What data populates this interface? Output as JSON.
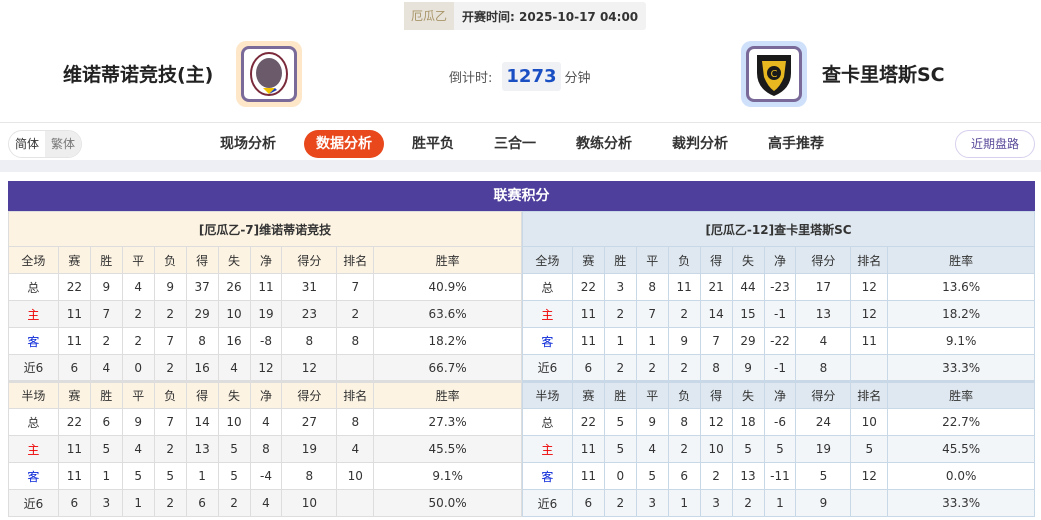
{
  "match": {
    "league": "厄瓜乙",
    "time_label": "开赛时间:",
    "time": "2025-10-17 04:00",
    "home": "维诺蒂诺竞技(主)",
    "away": "查卡里塔斯SC",
    "countdown_label": "倒计时:",
    "countdown": "1273",
    "countdown_unit": "分钟"
  },
  "nav": {
    "lang": [
      "简体",
      "繁体"
    ],
    "tabs": [
      "现场分析",
      "数据分析",
      "胜平负",
      "三合一",
      "教练分析",
      "裁判分析",
      "高手推荐"
    ],
    "active": 1,
    "recent": "近期盘路"
  },
  "standings": {
    "title": "联赛积分",
    "columns_full": [
      "全场",
      "赛",
      "胜",
      "平",
      "负",
      "得",
      "失",
      "净",
      "得分",
      "排名",
      "胜率"
    ],
    "columns_half": [
      "半场",
      "赛",
      "胜",
      "平",
      "负",
      "得",
      "失",
      "净",
      "得分",
      "排名",
      "胜率"
    ],
    "home": {
      "title": "[厄瓜乙-7]维诺蒂诺竞技",
      "full": [
        [
          "总",
          "22",
          "9",
          "4",
          "9",
          "37",
          "26",
          "11",
          "31",
          "7",
          "40.9%"
        ],
        [
          "主",
          "11",
          "7",
          "2",
          "2",
          "29",
          "10",
          "19",
          "23",
          "2",
          "63.6%"
        ],
        [
          "客",
          "11",
          "2",
          "2",
          "7",
          "8",
          "16",
          "-8",
          "8",
          "8",
          "18.2%"
        ],
        [
          "近6",
          "6",
          "4",
          "0",
          "2",
          "16",
          "4",
          "12",
          "12",
          "",
          "66.7%"
        ]
      ],
      "half": [
        [
          "总",
          "22",
          "6",
          "9",
          "7",
          "14",
          "10",
          "4",
          "27",
          "8",
          "27.3%"
        ],
        [
          "主",
          "11",
          "5",
          "4",
          "2",
          "13",
          "5",
          "8",
          "19",
          "4",
          "45.5%"
        ],
        [
          "客",
          "11",
          "1",
          "5",
          "5",
          "1",
          "5",
          "-4",
          "8",
          "10",
          "9.1%"
        ],
        [
          "近6",
          "6",
          "3",
          "1",
          "2",
          "6",
          "2",
          "4",
          "10",
          "",
          "50.0%"
        ]
      ]
    },
    "away": {
      "title": "[厄瓜乙-12]查卡里塔斯SC",
      "full": [
        [
          "总",
          "22",
          "3",
          "8",
          "11",
          "21",
          "44",
          "-23",
          "17",
          "12",
          "13.6%"
        ],
        [
          "主",
          "11",
          "2",
          "7",
          "2",
          "14",
          "15",
          "-1",
          "13",
          "12",
          "18.2%"
        ],
        [
          "客",
          "11",
          "1",
          "1",
          "9",
          "7",
          "29",
          "-22",
          "4",
          "11",
          "9.1%"
        ],
        [
          "近6",
          "6",
          "2",
          "2",
          "2",
          "8",
          "9",
          "-1",
          "8",
          "",
          "33.3%"
        ]
      ],
      "half": [
        [
          "总",
          "22",
          "5",
          "9",
          "8",
          "12",
          "18",
          "-6",
          "24",
          "10",
          "22.7%"
        ],
        [
          "主",
          "11",
          "5",
          "4",
          "2",
          "10",
          "5",
          "5",
          "19",
          "5",
          "45.5%"
        ],
        [
          "客",
          "11",
          "0",
          "5",
          "6",
          "2",
          "13",
          "-11",
          "5",
          "12",
          "0.0%"
        ],
        [
          "近6",
          "6",
          "2",
          "3",
          "1",
          "3",
          "2",
          "1",
          "9",
          "",
          "33.3%"
        ]
      ]
    }
  }
}
